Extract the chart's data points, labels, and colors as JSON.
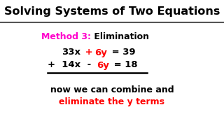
{
  "title": "Solving Systems of Two Equations",
  "title_color": "#000000",
  "title_bg": "#ffffff",
  "bg_color": "#ffffff",
  "method_label": "Method 3:",
  "method_label_color": "#ff00cc",
  "method_name": " Elimination",
  "method_name_color": "#000000",
  "note_line1": "now we can combine and",
  "note_line1_color": "#000000",
  "note_line2": "eliminate the y terms",
  "note_line2_color": "#ff0000",
  "separator_color": "#555555",
  "underline_color": "#000000"
}
